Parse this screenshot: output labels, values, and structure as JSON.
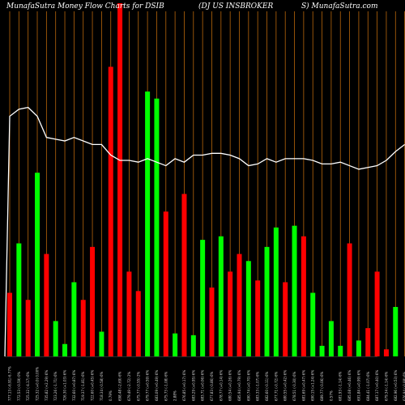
{
  "chart_data": {
    "type": "bar",
    "title": "MunafaSutra  Money Flow  Charts for DSIB",
    "subtitle": "(DJ US INSBROKER",
    "subtitle2": "S) MunafaSutra.com",
    "colors": {
      "up": "#00ff00",
      "down": "#ff0000",
      "line": "#ffffff",
      "grid": "#b8660b",
      "background": "#000000"
    },
    "ylim": [
      0,
      100
    ],
    "categories": [
      "777.13 (-6.91) 6.77%",
      "772.53 (-0.59) 0%",
      "725.32 (-4.17) 6%",
      "725.32 (+0.0) 0.00%",
      "735.82 (+2.29) 6%",
      "723.26 (-1.71) 6%",
      "726.30 (+1.03) 6%",
      "732.60 (+0.87) 6%",
      "719.37 (-1.81) 6%",
      "722.60 (+0.45) 6%",
      "718.34 (-0.58) 6%",
      "0.79%",
      "698.48 (-2.69) 6%",
      "679.49 (-2.72) 2%",
      "675.77 (-0.55) 2%",
      "679.77 (+0.59) 6%",
      "683.09 (+0.49) 6%",
      "675.73 (-1.08) 6%",
      "2.88%",
      "676.85 (+0.17) 6%",
      "683.29 (+0.95) 6%",
      "683.71 (+0.06) 6%",
      "677.83 (-0.86) 6%",
      "678.77 (+0.14) 6%",
      "680.54 (+0.26) 6%",
      "685.94 (+0.79) 6%",
      "690.74 (+0.70) 6%",
      "683.33 (-1.07) 6%",
      "682.60 (-0.11) 6%",
      "677.71 (-0.72) 6%",
      "680.55 (+0.42) 6%",
      "678.51 (-0.30) 6%",
      "681.69 (+0.47) 6%",
      "690.15 (+1.24) 6%",
      "689.77 (-0.06) 6%",
      "0.57%",
      "681.93 (-1.14) 6%",
      "685.08 (+0.46) 6%",
      "691.84 (+0.99) 6%",
      "684.41 (-1.07) 6%",
      "687.17 (+0.40) 6%",
      "679.34 (-1.14) 6%",
      "682.96 (+0.53) 6%",
      "676.94 (-0.88) 6%"
    ],
    "series": [
      {
        "values": [
          18,
          32,
          16,
          52,
          29,
          10,
          3.5,
          21,
          16,
          31,
          7,
          82,
          100,
          24,
          18.5,
          75,
          73,
          41,
          6.5,
          46,
          6,
          33,
          19.5,
          34,
          24,
          29,
          27,
          21.5,
          31,
          36.5,
          21,
          37,
          34,
          18,
          3,
          10,
          3,
          32,
          4.5,
          8,
          24,
          2,
          14,
          0
        ],
        "direction": [
          "down",
          "up",
          "down",
          "up",
          "down",
          "up",
          "up",
          "up",
          "down",
          "down",
          "up",
          "down",
          "down",
          "down",
          "down",
          "up",
          "up",
          "down",
          "up",
          "down",
          "up",
          "up",
          "down",
          "up",
          "down",
          "down",
          "up",
          "down",
          "up",
          "up",
          "down",
          "up",
          "down",
          "up",
          "up",
          "up",
          "up",
          "down",
          "up",
          "down",
          "down",
          "down",
          "up",
          "down"
        ]
      },
      {
        "values": [
          68,
          70,
          70.5,
          68,
          62,
          61.5,
          61,
          62,
          61,
          60,
          60,
          57,
          55.5,
          55.5,
          55,
          56,
          55,
          54,
          56,
          55,
          57,
          57,
          57.5,
          57.5,
          57,
          56,
          54,
          54.5,
          56,
          55,
          56,
          56,
          56,
          55.5,
          54.5,
          54.5,
          55,
          54,
          53,
          53.5,
          54,
          55.5,
          58,
          60
        ]
      }
    ]
  }
}
